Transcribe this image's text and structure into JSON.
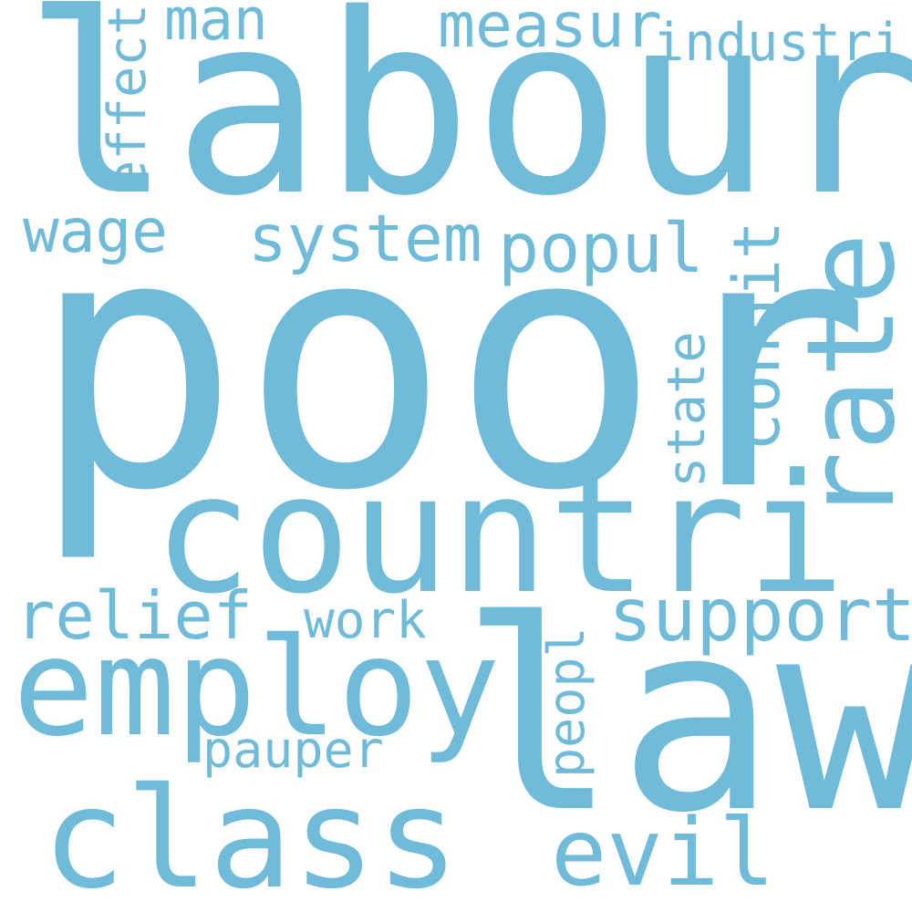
{
  "word_color": "#6fbbd9",
  "background_color": "#ffffff",
  "words": {
    "poor": "poor",
    "labour": "labour",
    "law": "law",
    "countri": "countri",
    "rate": "rate",
    "employ": "employ",
    "class": "class",
    "evil": "evil",
    "support": "support",
    "system": "system",
    "popul": "popul",
    "condit": "condit",
    "wage": "wage",
    "effect": "effect",
    "man": "man",
    "measur": "measur",
    "industri": "industri",
    "relief": "relief",
    "work": "work",
    "pauper": "pauper",
    "state": "state",
    "peopl": "peopl"
  }
}
